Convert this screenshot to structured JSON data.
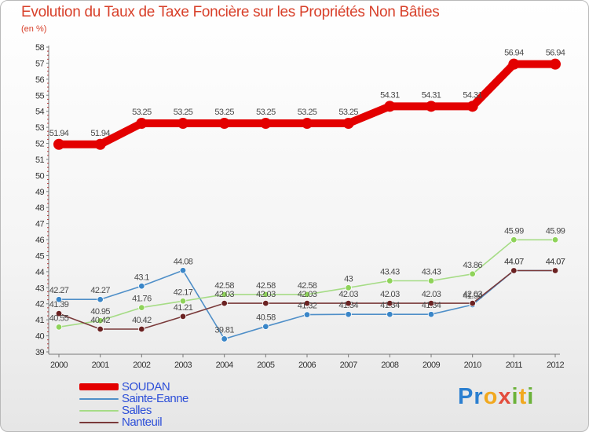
{
  "header": {
    "title": "Evolution du Taux de Taxe Foncière sur les Propriétés Non Bâties",
    "unit": "(en %)"
  },
  "logo": {
    "text": "Proxiti"
  },
  "colors": {
    "title": "#d8402a",
    "legend_text": "#2d4fd8"
  },
  "chart_data": {
    "type": "line",
    "title": "Evolution du Taux de Taxe Foncière sur les Propriétés Non Bâties",
    "ylabel": "(en %)",
    "xlabel": "",
    "x": [
      "2000",
      "2001",
      "2002",
      "2003",
      "2004",
      "2005",
      "2006",
      "2007",
      "2008",
      "2009",
      "2010",
      "2011",
      "2012"
    ],
    "ylim": [
      39,
      58
    ],
    "yticks": [
      39,
      40,
      41,
      42,
      43,
      44,
      45,
      46,
      47,
      48,
      49,
      50,
      51,
      52,
      53,
      54,
      55,
      56,
      57,
      58
    ],
    "grid": false,
    "legend_position": "bottom-left",
    "series": [
      {
        "name": "SOUDAN",
        "color": "#e30000",
        "style": "thick",
        "values": [
          51.94,
          51.94,
          53.25,
          53.25,
          53.25,
          53.25,
          53.25,
          53.25,
          54.31,
          54.31,
          54.31,
          56.94,
          56.94
        ],
        "labels": [
          "51.94",
          "51.94",
          "53.25",
          "53.25",
          "53.25",
          "53.25",
          "53.25",
          "53.25",
          "54.31",
          "54.31",
          "54.31",
          "56.94",
          "56.94"
        ]
      },
      {
        "name": "Sainte-Eanne",
        "color": "#4f8fc8",
        "marker": "#3a86c8",
        "values": [
          42.27,
          42.27,
          43.1,
          44.08,
          39.81,
          40.58,
          41.32,
          41.34,
          41.34,
          41.34,
          41.94,
          44.07,
          44.07
        ],
        "labels": [
          "42.27",
          "42.27",
          "43.1",
          "44.08",
          "39.81",
          "40.58",
          "41.32",
          "41.34",
          "41.34",
          "41.34",
          "41.94",
          "44.07",
          "44.07"
        ]
      },
      {
        "name": "Salles",
        "color": "#a6dc86",
        "marker": "#8fd35a",
        "values": [
          40.55,
          40.95,
          41.76,
          42.17,
          42.58,
          42.58,
          42.58,
          43,
          43.43,
          43.43,
          43.86,
          45.99,
          45.99
        ],
        "labels": [
          "40.55",
          "40.95",
          "41.76",
          "42.17",
          "42.58",
          "42.58",
          "42.58",
          "43",
          "43.43",
          "43.43",
          "43.86",
          "45.99",
          "45.99"
        ]
      },
      {
        "name": "Nanteuil",
        "color": "#7a3a3a",
        "marker": "#6b2222",
        "values": [
          41.39,
          40.42,
          40.42,
          41.21,
          42.03,
          42.03,
          42.03,
          42.03,
          42.03,
          42.03,
          42.03,
          44.07,
          44.07
        ],
        "labels": [
          "41.39",
          "40.42",
          "40.42",
          "41.21",
          "42.03",
          "42.03",
          "42.03",
          "42.03",
          "42.03",
          "42.03",
          "42.03",
          "44.07",
          "44.07"
        ]
      }
    ]
  }
}
